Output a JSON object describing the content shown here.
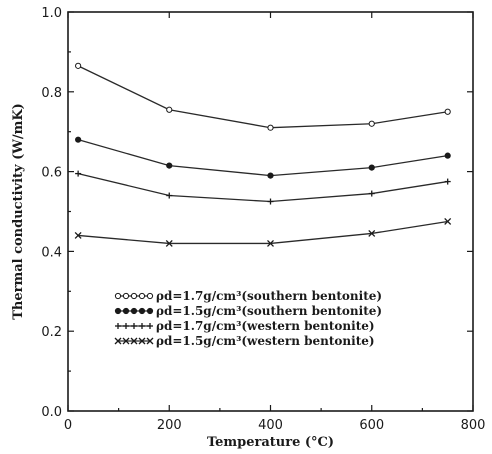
{
  "chart_data": {
    "type": "line",
    "xlabel": "Temperature (°C)",
    "ylabel": "Thermal conductivity (W/mK)",
    "xlim": [
      0,
      800
    ],
    "ylim": [
      0.0,
      1.0
    ],
    "x_ticks": [
      "0",
      "200",
      "400",
      "600",
      "800"
    ],
    "y_ticks": [
      "0.0",
      "0.2",
      "0.4",
      "0.6",
      "0.8",
      "1.0"
    ],
    "grid": false,
    "legend_position": "lower-center",
    "x": [
      20,
      200,
      400,
      600,
      750
    ],
    "series": [
      {
        "name": "ρd=1.7g/cm³(southern bentonite)",
        "marker": "open-circle",
        "values": [
          0.865,
          0.755,
          0.71,
          0.72,
          0.75
        ]
      },
      {
        "name": "ρd=1.5g/cm³(southern bentonite)",
        "marker": "filled-circle",
        "values": [
          0.68,
          0.615,
          0.59,
          0.61,
          0.64
        ]
      },
      {
        "name": "ρd=1.7g/cm³(western bentonite)",
        "marker": "plus",
        "values": [
          0.595,
          0.54,
          0.525,
          0.545,
          0.575
        ]
      },
      {
        "name": "ρd=1.5g/cm³(western bentonite)",
        "marker": "cross",
        "values": [
          0.44,
          0.42,
          0.42,
          0.445,
          0.475
        ]
      }
    ]
  }
}
